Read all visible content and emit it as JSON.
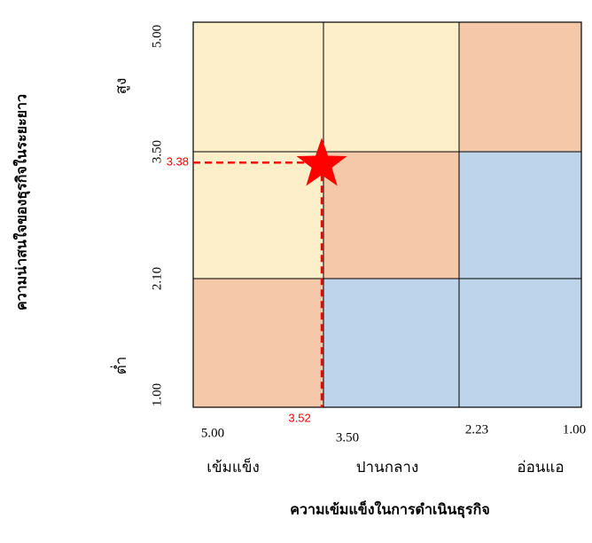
{
  "chart_data": {
    "type": "heatmap",
    "title": "",
    "xlabel": "ความเข้มแข็งในการดำเนินธุรกิจ",
    "ylabel": "ความน่าสนใจของธุรกิจในระยะยาว",
    "x_ticks": [
      "5.00",
      "3.50",
      "2.23",
      "1.00"
    ],
    "y_ticks": [
      "1.00",
      "2.10",
      "3.50",
      "5.00"
    ],
    "x_categories": [
      "เข้มแข็ง",
      "ปานกลาง",
      "อ่อนแอ"
    ],
    "y_categories": [
      "ต่ำ",
      "สูง"
    ],
    "xlim": [
      5.0,
      1.0
    ],
    "ylim": [
      1.0,
      5.0
    ],
    "x_boundaries": [
      5.0,
      3.5,
      2.23,
      1.0
    ],
    "y_boundaries": [
      1.0,
      2.1,
      3.5,
      5.0
    ],
    "grid_colors": [
      [
        "#f5c8aa",
        "#bdd4eb",
        "#bdd4eb"
      ],
      [
        "#fcefc9",
        "#f5c8aa",
        "#bdd4eb"
      ],
      [
        "#fcefc9",
        "#fcefc9",
        "#f5c8aa"
      ]
    ],
    "marker": {
      "x": 3.52,
      "y": 3.38,
      "x_label": "3.52",
      "y_label": "3.38",
      "shape": "star",
      "color": "#ff0000"
    }
  }
}
